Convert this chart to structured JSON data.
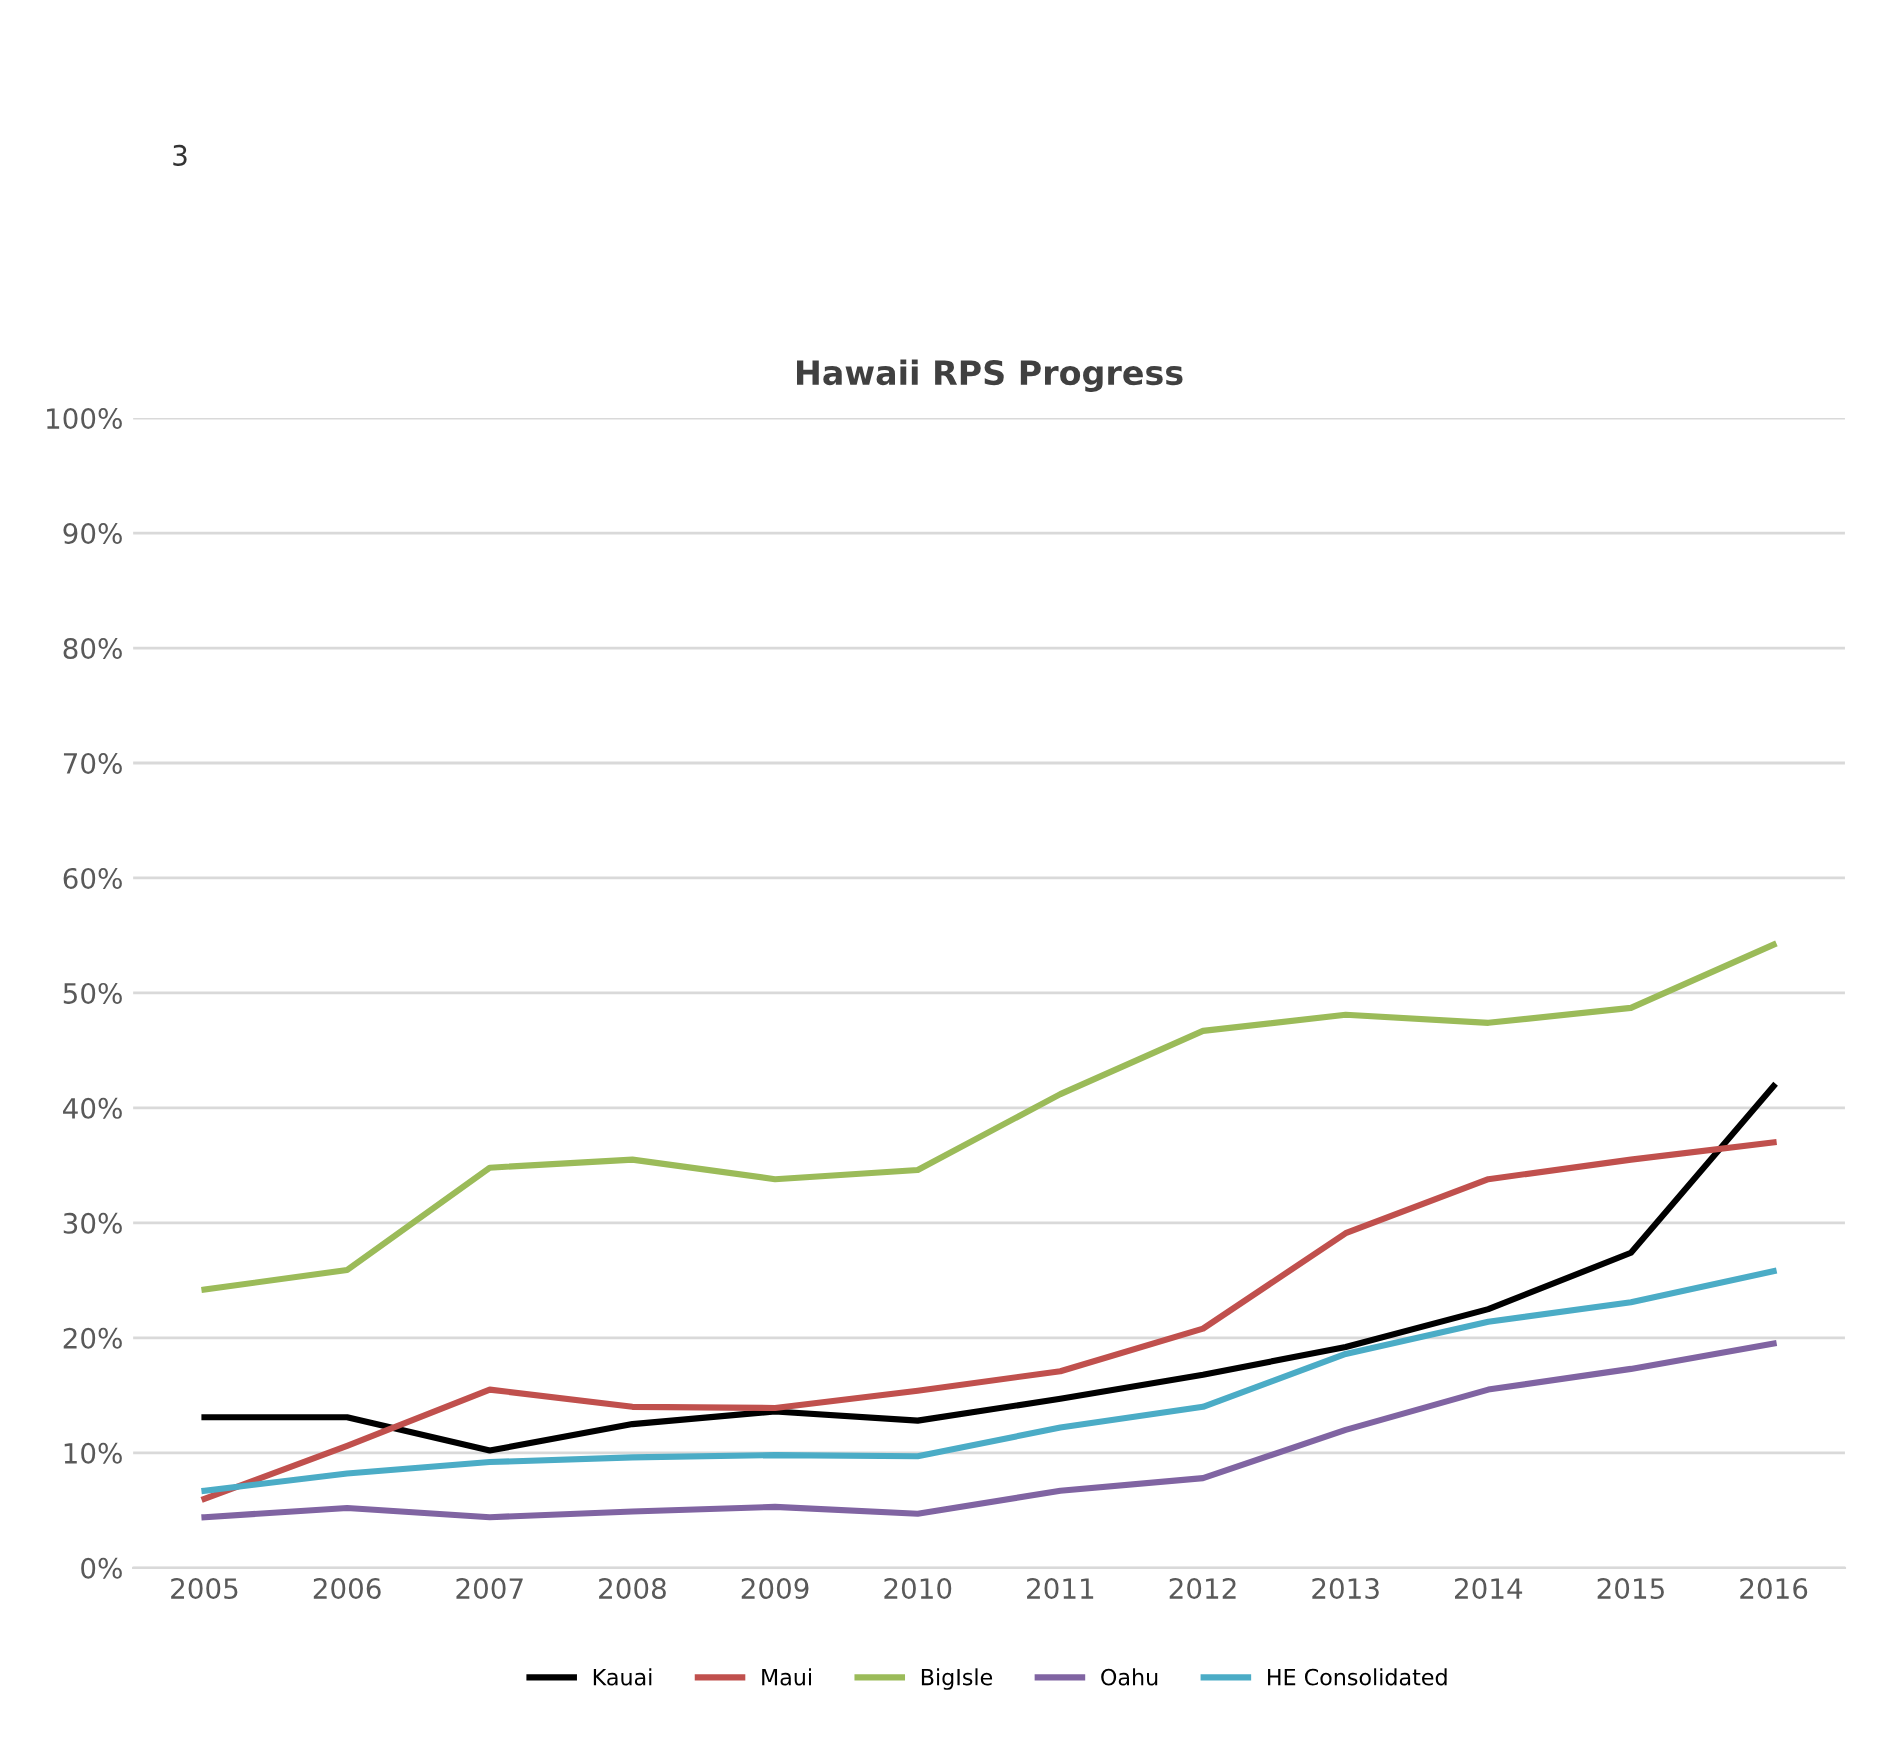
{
  "chart_data": {
    "type": "line",
    "title": "Hawaii RPS Progress",
    "categories": [
      "2005",
      "2006",
      "2007",
      "2008",
      "2009",
      "2010",
      "2011",
      "2012",
      "2013",
      "2014",
      "2015",
      "2016"
    ],
    "series": [
      {
        "name": "Kauai",
        "color": "#000000",
        "values": [
          13.1,
          13.1,
          10.2,
          12.5,
          13.6,
          12.8,
          14.7,
          16.8,
          19.2,
          22.5,
          27.4,
          41.9
        ]
      },
      {
        "name": "Maui",
        "color": "#c0504d",
        "values": [
          6.0,
          10.6,
          15.5,
          14.0,
          13.9,
          15.4,
          17.1,
          20.8,
          29.1,
          33.8,
          35.5,
          37.0
        ]
      },
      {
        "name": "BigIsle",
        "color": "#9bbb59",
        "values": [
          24.2,
          25.9,
          34.8,
          35.5,
          33.8,
          34.6,
          41.2,
          46.7,
          48.1,
          47.4,
          48.7,
          54.2
        ]
      },
      {
        "name": "Oahu",
        "color": "#8064a2",
        "values": [
          4.4,
          5.2,
          4.4,
          4.9,
          5.3,
          4.7,
          6.7,
          7.8,
          12.0,
          15.5,
          17.3,
          19.5
        ]
      },
      {
        "name": "HE Consolidated",
        "color": "#4bacc6",
        "values": [
          6.7,
          8.2,
          9.2,
          9.6,
          9.8,
          9.7,
          12.2,
          14.0,
          18.6,
          21.4,
          23.1,
          25.8
        ]
      }
    ],
    "ylim": [
      0,
      100
    ],
    "yticks": [
      {
        "value": 0,
        "label": "0%"
      },
      {
        "value": 10,
        "label": "10%"
      },
      {
        "value": 20,
        "label": "20%"
      },
      {
        "value": 30,
        "label": "30%"
      },
      {
        "value": 40,
        "label": "40%"
      },
      {
        "value": 50,
        "label": "50%"
      },
      {
        "value": 60,
        "label": "60%"
      },
      {
        "value": 70,
        "label": "70%"
      },
      {
        "value": 80,
        "label": "80%"
      },
      {
        "value": 90,
        "label": "90%"
      },
      {
        "value": 100,
        "label": "100%"
      }
    ],
    "grid": "y",
    "legend": "bottom",
    "marker": "none",
    "line_style": "solid",
    "annotations": [
      "3"
    ]
  }
}
